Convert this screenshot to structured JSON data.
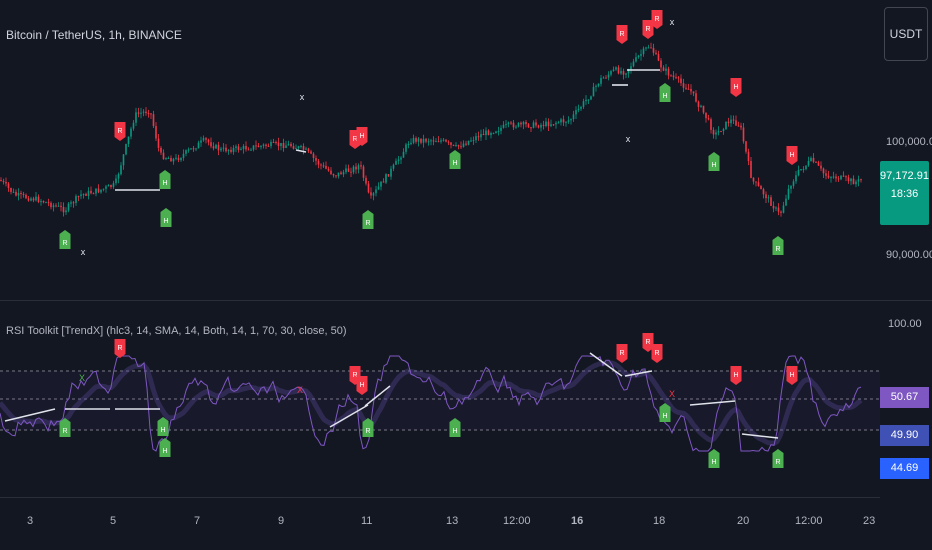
{
  "header": {
    "symbol_title": "Bitcoin / TetherUS, 1h, BINANCE",
    "currency_button": "USDT"
  },
  "price_axis": {
    "labels": [
      "100,000.00",
      "90,000.00"
    ],
    "current_price": "97,172.91",
    "countdown": "18:36"
  },
  "indicator": {
    "title": "RSI Toolkit [TrendX] (hlc3, 14, SMA, 14, Both, 14, 1, 70, 30, close, 50)",
    "axis_top": "100.00",
    "value_tags": [
      {
        "label": "50.67",
        "color": "#7e57c2"
      },
      {
        "label": "49.90",
        "color": "#3f51b5"
      },
      {
        "label": "44.69",
        "color": "#2962ff"
      }
    ]
  },
  "time_axis": {
    "labels": [
      "3",
      "5",
      "7",
      "9",
      "11",
      "13",
      "12:00",
      "16",
      "18",
      "20",
      "12:00",
      "23"
    ]
  },
  "markers": {
    "bearish": "R",
    "hidden_bearish": "H",
    "bullish": "R",
    "hidden_bullish": "H",
    "cross": "x",
    "rsi_cross": "X"
  },
  "colors": {
    "up": "#089981",
    "down": "#f23645",
    "rsi_line": "#7e57c2",
    "bear_marker": "#f23645",
    "bull_marker": "#4caf50",
    "background": "#131722"
  }
}
